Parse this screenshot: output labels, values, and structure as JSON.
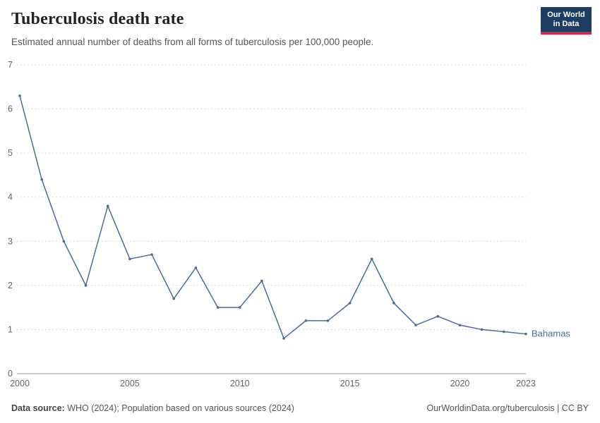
{
  "header": {
    "title": "Tuberculosis death rate",
    "subtitle": "Estimated annual number of deaths from all forms of tuberculosis per 100,000 people.",
    "logo": {
      "line1": "Our World",
      "line2": "in Data",
      "bg": "#1d3d63",
      "accent": "#d42b42"
    }
  },
  "chart_data": {
    "type": "line",
    "title": "Tuberculosis death rate",
    "subtitle": "Estimated annual number of deaths from all forms of tuberculosis per 100,000 people.",
    "series_label": "Bahamas",
    "x": [
      2000,
      2001,
      2002,
      2003,
      2004,
      2005,
      2006,
      2007,
      2008,
      2009,
      2010,
      2011,
      2012,
      2013,
      2014,
      2015,
      2016,
      2017,
      2018,
      2019,
      2020,
      2021,
      2022,
      2023
    ],
    "values": [
      6.3,
      4.4,
      3.0,
      2.0,
      3.8,
      2.6,
      2.7,
      1.7,
      2.4,
      1.5,
      1.5,
      2.1,
      0.8,
      1.2,
      1.2,
      1.6,
      2.6,
      1.6,
      1.1,
      1.3,
      1.1,
      1.0,
      0.95,
      0.9
    ],
    "ylim": [
      0,
      7
    ],
    "yticks": [
      0,
      1,
      2,
      3,
      4,
      5,
      6,
      7
    ],
    "xticks": [
      2000,
      2005,
      2010,
      2015,
      2020,
      2023
    ],
    "xlabel": "",
    "ylabel": "",
    "grid": true,
    "legend_position": "end-of-line",
    "line_color": "#4c6a9c",
    "grid_color": "#dddddd",
    "axis_color": "#999999",
    "tick_color": "#666666"
  },
  "footer": {
    "source_label": "Data source:",
    "source_text": " WHO (2024); Population based on various sources (2024)",
    "right_text": "OurWorldinData.org/tuberculosis | CC BY"
  }
}
